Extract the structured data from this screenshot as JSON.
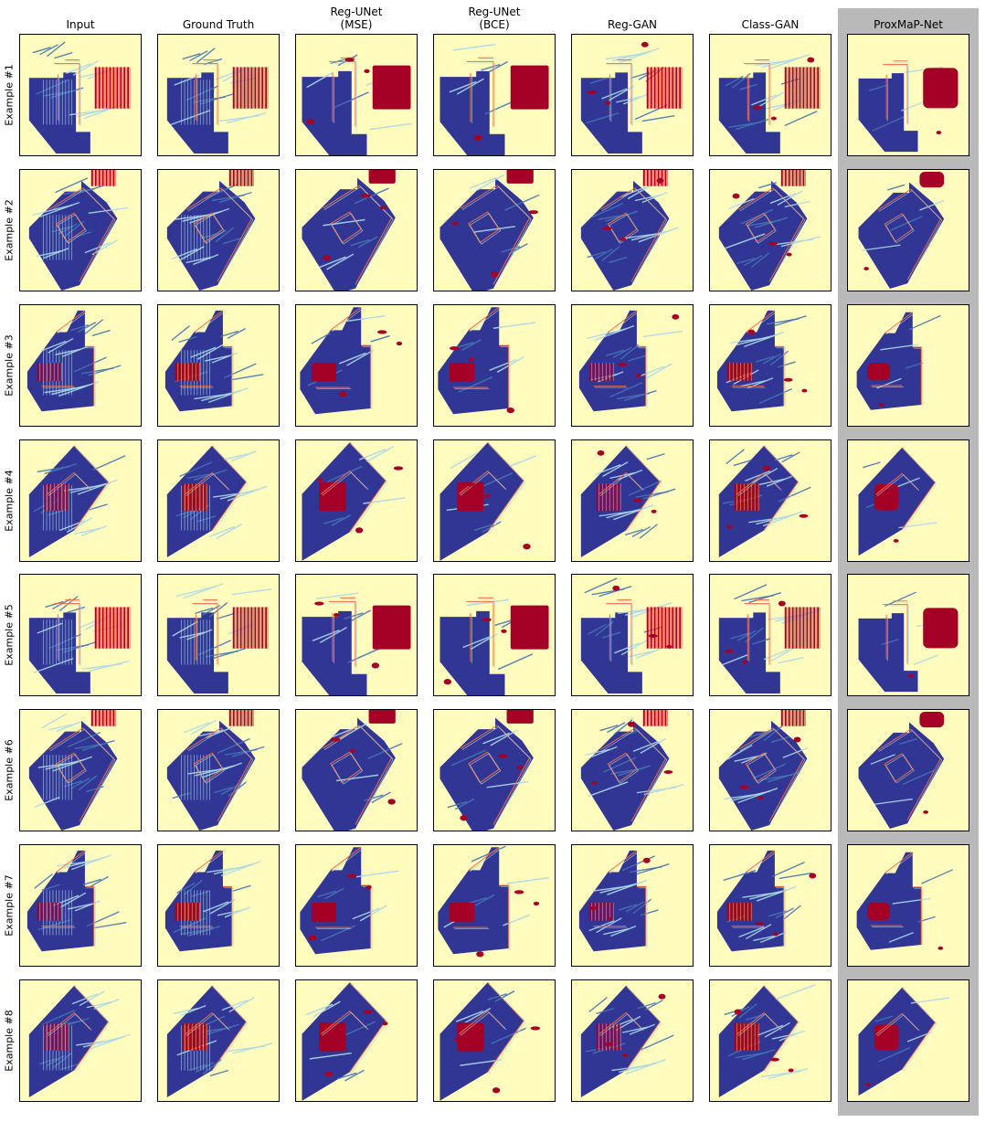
{
  "columns": [
    {
      "line1": "Input",
      "line2": ""
    },
    {
      "line1": "Ground Truth",
      "line2": ""
    },
    {
      "line1": "Reg-UNet",
      "line2": "(MSE)"
    },
    {
      "line1": "Reg-UNet",
      "line2": "(BCE)"
    },
    {
      "line1": "Reg-GAN",
      "line2": ""
    },
    {
      "line1": "Class-GAN",
      "line2": ""
    },
    {
      "line1": "ProxMaP-Net",
      "line2": ""
    }
  ],
  "rows": [
    "Example #1",
    "Example #2",
    "Example #3",
    "Example #4",
    "Example #5",
    "Example #6",
    "Example #7",
    "Example #8"
  ],
  "highlighted_column": "ProxMaP-Net",
  "colors": {
    "background": "#fffcbd",
    "occupied_dark": "#313695",
    "mid_blue": "#4575b4",
    "light_blue": "#abd9e9",
    "red": "#a50026",
    "orange": "#f46d43",
    "highlight_band": "#b9b9b9"
  }
}
